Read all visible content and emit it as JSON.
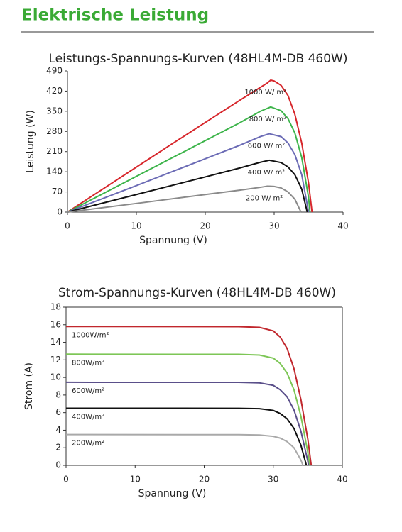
{
  "heading": "Elektrische Leistung",
  "chart_data": [
    {
      "type": "line",
      "title": "Leistungs-Spannungs-Kurven (48HL4M-DB 460W)",
      "xlabel": "Spannung (V)",
      "ylabel": "Leistung (W)",
      "xlim": [
        0,
        40
      ],
      "xticks": [
        0,
        10,
        20,
        30,
        40
      ],
      "ylim": [
        0,
        490
      ],
      "yticks": [
        0,
        70,
        140,
        210,
        280,
        350,
        420,
        490
      ],
      "box": false,
      "series": [
        {
          "name": "1000 W/ m²",
          "color": "#d7262b",
          "x": [
            0,
            5,
            10,
            15,
            20,
            25,
            27,
            28,
            29,
            29.5,
            30,
            31,
            32,
            33,
            34,
            35,
            35.5
          ],
          "values": [
            0,
            78,
            156,
            234,
            311,
            388,
            418,
            433,
            448,
            458,
            455,
            440,
            405,
            340,
            240,
            100,
            0
          ]
        },
        {
          "name": "800 W/ m²",
          "color": "#3cb44a",
          "x": [
            0,
            10,
            20,
            25,
            28,
            29.5,
            31,
            32,
            33,
            34,
            35,
            35.2
          ],
          "values": [
            0,
            124,
            248,
            310,
            350,
            365,
            352,
            325,
            275,
            190,
            50,
            0
          ]
        },
        {
          "name": "600 W/ m²",
          "color": "#6b6bb5",
          "x": [
            0,
            10,
            20,
            25,
            28,
            29.3,
            31,
            32,
            33,
            34,
            35
          ],
          "values": [
            0,
            92,
            185,
            232,
            262,
            272,
            262,
            240,
            200,
            130,
            0
          ]
        },
        {
          "name": "400 W/ m²",
          "color": "#111111",
          "x": [
            0,
            10,
            20,
            25,
            28,
            29.3,
            31,
            32,
            33,
            34,
            34.8
          ],
          "values": [
            0,
            61,
            122,
            153,
            173,
            180,
            172,
            157,
            130,
            80,
            0
          ]
        },
        {
          "name": "200 W/ m²",
          "color": "#8a8a8a",
          "x": [
            0,
            10,
            20,
            25,
            28,
            29,
            30,
            31,
            32,
            33,
            33.9
          ],
          "values": [
            0,
            30,
            61,
            76,
            86,
            90,
            89,
            84,
            70,
            45,
            0
          ]
        }
      ]
    },
    {
      "type": "line",
      "title": "Strom-Spannungs-Kurven (48HL4M-DB 460W)",
      "xlabel": "Spannung (V)",
      "ylabel": "Strom (A)",
      "xlim": [
        0,
        40
      ],
      "xticks": [
        0,
        10,
        20,
        30,
        40
      ],
      "ylim": [
        0,
        18
      ],
      "yticks": [
        0,
        2,
        4,
        6,
        8,
        10,
        12,
        14,
        16,
        18
      ],
      "box": true,
      "series": [
        {
          "name": "1000W/m²",
          "color": "#c1272d",
          "x": [
            0,
            25,
            28,
            30,
            31,
            32,
            33,
            34,
            35,
            35.5
          ],
          "values": [
            15.8,
            15.78,
            15.7,
            15.3,
            14.6,
            13.3,
            11,
            7.5,
            3,
            0
          ]
        },
        {
          "name": "800W/m²",
          "color": "#7dc656",
          "x": [
            0,
            25,
            28,
            30,
            31,
            32,
            33,
            34,
            35,
            35.3
          ],
          "values": [
            12.65,
            12.63,
            12.55,
            12.2,
            11.6,
            10.5,
            8.6,
            5.6,
            1.5,
            0
          ]
        },
        {
          "name": "600W/m²",
          "color": "#5a4f8a",
          "x": [
            0,
            25,
            28,
            30,
            31,
            32,
            33,
            34,
            35,
            35.1
          ],
          "values": [
            9.45,
            9.44,
            9.38,
            9.1,
            8.6,
            7.8,
            6.3,
            3.9,
            0.5,
            0
          ]
        },
        {
          "name": "400W/m²",
          "color": "#111111",
          "x": [
            0,
            25,
            28,
            30,
            31,
            32,
            33,
            34,
            34.8
          ],
          "values": [
            6.5,
            6.49,
            6.45,
            6.25,
            5.9,
            5.3,
            4.2,
            2.3,
            0
          ]
        },
        {
          "name": "200W/m²",
          "color": "#a9a9a9",
          "x": [
            0,
            25,
            28,
            30,
            31,
            32,
            33,
            34,
            34.3
          ],
          "values": [
            3.5,
            3.49,
            3.45,
            3.3,
            3.1,
            2.7,
            2,
            0.6,
            0
          ]
        }
      ]
    }
  ]
}
